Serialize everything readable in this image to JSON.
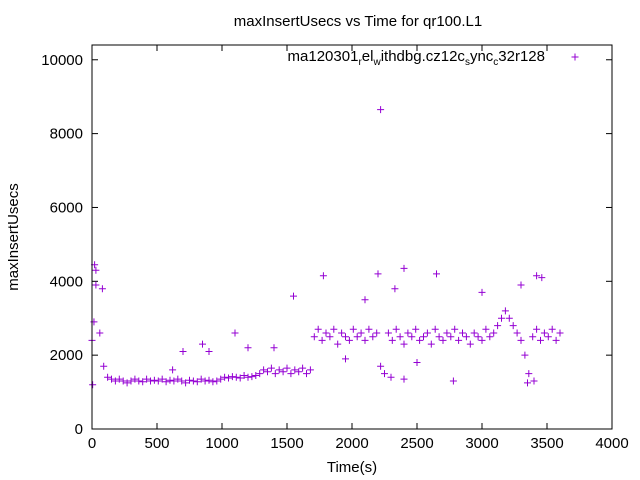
{
  "chart_data": {
    "type": "scatter",
    "title": "maxInsertUsecs vs Time for qr100.L1",
    "xlabel": "Time(s)",
    "ylabel": "maxInsertUsecs",
    "xlim": [
      0,
      4000
    ],
    "ylim": [
      0,
      10400
    ],
    "xticks": [
      "0",
      "500",
      "1000",
      "1500",
      "2000",
      "2500",
      "3000",
      "3500",
      "4000"
    ],
    "xtick_values": [
      0,
      500,
      1000,
      1500,
      2000,
      2500,
      3000,
      3500,
      4000
    ],
    "yticks": [
      "0",
      "2000",
      "4000",
      "6000",
      "8000",
      "10000"
    ],
    "ytick_values": [
      0,
      2000,
      4000,
      6000,
      8000,
      10000
    ],
    "grid": false,
    "legend_position": "top-right",
    "legend_parts": [
      {
        "text": "ma120301",
        "sub": false
      },
      {
        "text": "r",
        "sub": true
      },
      {
        "text": "el",
        "sub": false
      },
      {
        "text": "w",
        "sub": true
      },
      {
        "text": "ithdbg.cz12c",
        "sub": false
      },
      {
        "text": "s",
        "sub": true
      },
      {
        "text": "ync",
        "sub": false
      },
      {
        "text": "c",
        "sub": true
      },
      {
        "text": "32r128",
        "sub": false
      }
    ],
    "series": [
      {
        "name": "ma120301_rel_withdbg.cz12c_sync_c32r128",
        "color": "#9400d3",
        "marker": "plus",
        "x": [
          0,
          30,
          60,
          90,
          120,
          150,
          180,
          210,
          240,
          270,
          300,
          330,
          360,
          390,
          420,
          450,
          480,
          510,
          540,
          570,
          600,
          630,
          660,
          690,
          720,
          750,
          780,
          810,
          840,
          870,
          900,
          930,
          960,
          990,
          1020,
          1050,
          1080,
          1110,
          1140,
          1170,
          1200,
          1230,
          1260,
          1290,
          1320,
          1350,
          1380,
          1410,
          1440,
          1470,
          1500,
          1530,
          1560,
          1590,
          1620,
          1650,
          1680,
          1710,
          1740,
          1770,
          1800,
          1830,
          1860,
          1890,
          1920,
          1950,
          1980,
          2010,
          2040,
          2070,
          2100,
          2130,
          2160,
          2190,
          2220,
          2250,
          2280,
          2310,
          2340,
          2370,
          2400,
          2430,
          2460,
          2490,
          2520,
          2550,
          2580,
          2610,
          2640,
          2670,
          2700,
          2730,
          2760,
          2790,
          2820,
          2850,
          2880,
          2910,
          2940,
          2970,
          3000,
          3030,
          3060,
          3090,
          3120,
          3150,
          3180,
          3210,
          3240,
          3270,
          3300,
          3330,
          3360,
          3390,
          3420,
          3450,
          3480,
          3510,
          3540,
          3570,
          3600,
          2220,
          2200,
          2400,
          2650,
          1780,
          3460,
          3420,
          1550,
          20,
          30,
          80,
          1100,
          1200,
          700,
          850,
          900,
          2100,
          2330,
          3400,
          3350,
          2780,
          2400,
          2300,
          620,
          1400,
          3000,
          3300,
          2500,
          1950,
          5,
          15
        ],
        "y": [
          2400,
          3900,
          2600,
          1700,
          1400,
          1350,
          1300,
          1350,
          1300,
          1250,
          1300,
          1350,
          1300,
          1280,
          1350,
          1300,
          1320,
          1300,
          1350,
          1280,
          1320,
          1300,
          1350,
          1300,
          1250,
          1320,
          1300,
          1280,
          1350,
          1300,
          1320,
          1280,
          1300,
          1350,
          1400,
          1380,
          1420,
          1400,
          1380,
          1450,
          1400,
          1420,
          1450,
          1500,
          1600,
          1550,
          1650,
          1500,
          1600,
          1550,
          1650,
          1500,
          1600,
          1550,
          1650,
          1500,
          1600,
          2500,
          2700,
          2400,
          2600,
          2500,
          2700,
          2300,
          2600,
          2500,
          2400,
          2700,
          2500,
          2600,
          2400,
          2700,
          2500,
          2600,
          1700,
          1500,
          2600,
          2400,
          2700,
          2500,
          2300,
          2600,
          2500,
          2700,
          2400,
          2500,
          2600,
          2300,
          2700,
          2500,
          2400,
          2600,
          2500,
          2700,
          2400,
          2600,
          2500,
          2300,
          2600,
          2500,
          2400,
          2700,
          2500,
          2600,
          2800,
          3000,
          3200,
          3000,
          2800,
          2600,
          2400,
          2000,
          1500,
          2500,
          2700,
          2400,
          2600,
          2500,
          2700,
          2400,
          2600,
          8650,
          4200,
          4350,
          4200,
          4150,
          4100,
          4150,
          3600,
          4450,
          4300,
          3800,
          2600,
          2200,
          2100,
          2300,
          2100,
          3500,
          3800,
          1300,
          1250,
          1300,
          1350,
          1400,
          1600,
          2200,
          3700,
          3900,
          1800,
          1900,
          1200,
          2900
        ]
      }
    ]
  }
}
